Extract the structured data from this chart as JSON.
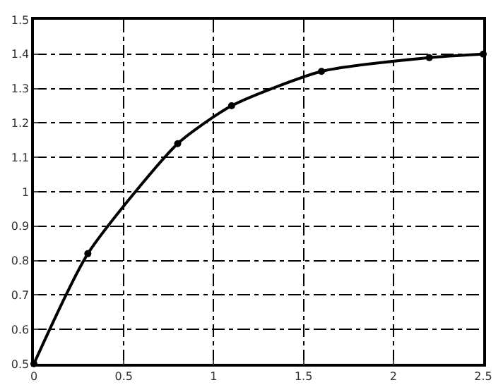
{
  "chart_data": {
    "type": "line",
    "x": [
      0,
      0.3,
      0.8,
      1.1,
      1.6,
      2.2,
      2.5
    ],
    "series": [
      {
        "color": "#000000",
        "values": [
          0.5,
          0.82,
          1.14,
          1.25,
          1.35,
          1.39,
          1.4
        ]
      }
    ],
    "xlim": [
      0,
      2.5
    ],
    "xticks": [
      0,
      0.5,
      1,
      1.5,
      2,
      2.5
    ],
    "ylim": [
      0.5,
      1.5
    ],
    "yticks": [
      0.5,
      0.6,
      0.7,
      0.8,
      0.9,
      1,
      1.1,
      1.2,
      1.3,
      1.4,
      1.5
    ],
    "grid": true,
    "marker": "circle",
    "line_style": "solid",
    "legend": false
  }
}
